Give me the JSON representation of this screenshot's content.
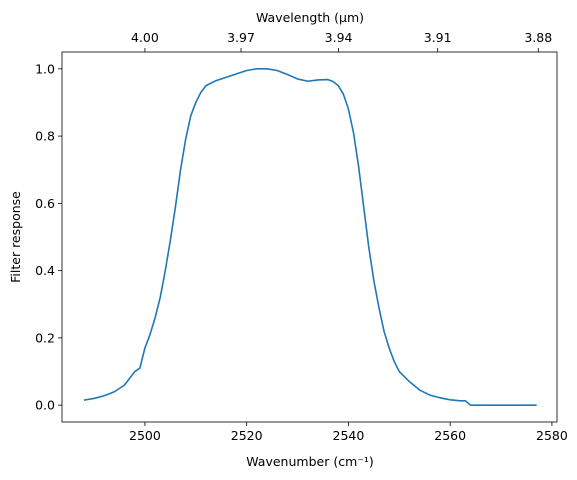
{
  "chart_data": {
    "type": "line",
    "xlabel": "Wavenumber (cm⁻¹)",
    "x2label": "Wavelength (μm)",
    "ylabel": "Filter response",
    "x": [
      2488,
      2490,
      2492,
      2494,
      2496,
      2497,
      2498,
      2499,
      2500,
      2501,
      2502,
      2503,
      2504,
      2505,
      2506,
      2507,
      2508,
      2509,
      2510,
      2511,
      2512,
      2514,
      2516,
      2518,
      2520,
      2522,
      2524,
      2526,
      2528,
      2530,
      2532,
      2534,
      2536,
      2537,
      2538,
      2539,
      2540,
      2541,
      2542,
      2543,
      2544,
      2545,
      2546,
      2547,
      2548,
      2549,
      2550,
      2552,
      2554,
      2556,
      2558,
      2560,
      2562,
      2563,
      2564,
      2570,
      2577
    ],
    "series": [
      {
        "name": "Filter response",
        "color": "#1f77b4",
        "values": [
          0.015,
          0.02,
          0.028,
          0.04,
          0.06,
          0.08,
          0.1,
          0.11,
          0.17,
          0.21,
          0.26,
          0.32,
          0.4,
          0.49,
          0.59,
          0.7,
          0.79,
          0.86,
          0.9,
          0.93,
          0.95,
          0.965,
          0.975,
          0.985,
          0.995,
          1.0,
          1.0,
          0.995,
          0.983,
          0.97,
          0.963,
          0.967,
          0.968,
          0.962,
          0.95,
          0.925,
          0.88,
          0.81,
          0.71,
          0.59,
          0.47,
          0.37,
          0.29,
          0.22,
          0.17,
          0.13,
          0.1,
          0.07,
          0.045,
          0.03,
          0.022,
          0.016,
          0.013,
          0.013,
          0.0,
          0.0,
          0.0
        ]
      }
    ],
    "xlim": [
      2483.7,
      2581
    ],
    "ylim": [
      -0.05,
      1.05
    ],
    "xticks": [
      2500,
      2520,
      2540,
      2560,
      2580
    ],
    "x2ticks": [
      {
        "value": 4,
        "label": "4.00"
      },
      3.97,
      3.94,
      3.91,
      3.88
    ],
    "yticks": [
      {
        "value": 0,
        "label": "0.0"
      },
      0.2,
      0.4,
      0.6,
      0.8,
      {
        "value": 1,
        "label": "1.0"
      }
    ]
  }
}
